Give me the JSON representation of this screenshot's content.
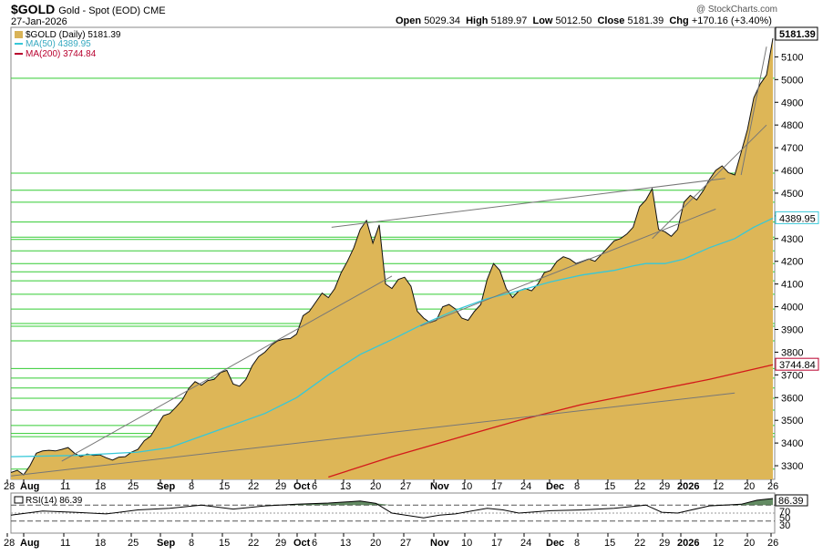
{
  "header": {
    "ticker": "$GOLD",
    "description": "Gold - Spot (EOD) CME",
    "date": "27-Jan-2026",
    "open_label": "Open",
    "open": "5029.34",
    "high_label": "High",
    "high": "5189.97",
    "low_label": "Low",
    "low": "5012.50",
    "close_label": "Close",
    "close": "5181.39",
    "chg_label": "Chg",
    "chg": "+170.16 (+3.40%)",
    "copyright": "@ StockCharts.com"
  },
  "legend": [
    {
      "label": "$GOLD (Daily) 5181.39",
      "color": "#d9b357"
    },
    {
      "label": "MA(50) 4389.95",
      "color": "#36c8d8"
    },
    {
      "label": "MA(200) 3744.84",
      "color": "#b8002e"
    }
  ],
  "price_badges": {
    "last": "5181.39",
    "ma50": "4389.95",
    "ma200": "3744.84"
  },
  "rsi": {
    "label": "RSI(14) 86.39",
    "badge": "86.39",
    "levels": [
      "70",
      "50",
      "30"
    ],
    "value": 86.39
  },
  "colors": {
    "area": "#ddb657",
    "ma50": "#36c8d8",
    "ma200": "#d31a1a",
    "hline": "#33cc33",
    "trend": "#777777"
  },
  "chart_data": {
    "type": "area",
    "ylim": [
      3240,
      5230
    ],
    "y_ticks": [
      3300,
      3400,
      3500,
      3600,
      3700,
      3800,
      3900,
      4000,
      4100,
      4200,
      4300,
      4400,
      4500,
      4600,
      4700,
      4800,
      4900,
      5000,
      5100
    ],
    "x_ticks": [
      "28",
      "Aug",
      "11",
      "18",
      "25",
      "Sep",
      "8",
      "15",
      "22",
      "29",
      "Oct",
      "6",
      "13",
      "20",
      "27",
      "Nov",
      "10",
      "17",
      "24",
      "Dec",
      "8",
      "15",
      "22",
      "29",
      "2026",
      "12",
      "20",
      "26"
    ],
    "bold_x_ticks": [
      "Aug",
      "Sep",
      "Oct",
      "Nov",
      "Dec",
      "2026"
    ],
    "price": [
      [
        0,
        3270
      ],
      [
        2,
        3280
      ],
      [
        4,
        3260
      ],
      [
        6,
        3300
      ],
      [
        8,
        3355
      ],
      [
        10,
        3365
      ],
      [
        12,
        3368
      ],
      [
        14,
        3365
      ],
      [
        16,
        3372
      ],
      [
        18,
        3380
      ],
      [
        20,
        3355
      ],
      [
        22,
        3340
      ],
      [
        24,
        3352
      ],
      [
        26,
        3345
      ],
      [
        28,
        3348
      ],
      [
        30,
        3335
      ],
      [
        32,
        3325
      ],
      [
        34,
        3338
      ],
      [
        36,
        3340
      ],
      [
        38,
        3360
      ],
      [
        40,
        3372
      ],
      [
        42,
        3410
      ],
      [
        44,
        3430
      ],
      [
        46,
        3475
      ],
      [
        48,
        3520
      ],
      [
        50,
        3530
      ],
      [
        52,
        3558
      ],
      [
        54,
        3590
      ],
      [
        56,
        3640
      ],
      [
        58,
        3670
      ],
      [
        60,
        3655
      ],
      [
        62,
        3675
      ],
      [
        64,
        3680
      ],
      [
        66,
        3710
      ],
      [
        68,
        3720
      ],
      [
        70,
        3660
      ],
      [
        72,
        3650
      ],
      [
        74,
        3680
      ],
      [
        76,
        3740
      ],
      [
        78,
        3780
      ],
      [
        80,
        3800
      ],
      [
        82,
        3830
      ],
      [
        84,
        3850
      ],
      [
        86,
        3858
      ],
      [
        88,
        3860
      ],
      [
        90,
        3880
      ],
      [
        92,
        3960
      ],
      [
        94,
        3980
      ],
      [
        96,
        4020
      ],
      [
        98,
        4060
      ],
      [
        100,
        4040
      ],
      [
        102,
        4080
      ],
      [
        104,
        4150
      ],
      [
        106,
        4200
      ],
      [
        108,
        4260
      ],
      [
        110,
        4340
      ],
      [
        112,
        4380
      ],
      [
        114,
        4280
      ],
      [
        116,
        4360
      ],
      [
        118,
        4100
      ],
      [
        120,
        4080
      ],
      [
        122,
        4120
      ],
      [
        124,
        4130
      ],
      [
        126,
        4090
      ],
      [
        128,
        3980
      ],
      [
        130,
        3950
      ],
      [
        132,
        3930
      ],
      [
        134,
        3940
      ],
      [
        136,
        4000
      ],
      [
        138,
        4010
      ],
      [
        140,
        3990
      ],
      [
        142,
        3950
      ],
      [
        144,
        3940
      ],
      [
        146,
        3980
      ],
      [
        148,
        4010
      ],
      [
        150,
        4120
      ],
      [
        152,
        4190
      ],
      [
        154,
        4160
      ],
      [
        156,
        4080
      ],
      [
        158,
        4040
      ],
      [
        160,
        4070
      ],
      [
        162,
        4080
      ],
      [
        164,
        4070
      ],
      [
        166,
        4100
      ],
      [
        168,
        4150
      ],
      [
        170,
        4160
      ],
      [
        172,
        4200
      ],
      [
        174,
        4220
      ],
      [
        176,
        4210
      ],
      [
        178,
        4190
      ],
      [
        180,
        4200
      ],
      [
        182,
        4210
      ],
      [
        184,
        4200
      ],
      [
        186,
        4230
      ],
      [
        188,
        4260
      ],
      [
        190,
        4290
      ],
      [
        192,
        4300
      ],
      [
        194,
        4320
      ],
      [
        196,
        4350
      ],
      [
        198,
        4440
      ],
      [
        200,
        4470
      ],
      [
        202,
        4520
      ],
      [
        204,
        4340
      ],
      [
        206,
        4330
      ],
      [
        208,
        4310
      ],
      [
        210,
        4340
      ],
      [
        212,
        4460
      ],
      [
        214,
        4490
      ],
      [
        216,
        4470
      ],
      [
        218,
        4510
      ],
      [
        220,
        4560
      ],
      [
        222,
        4600
      ],
      [
        224,
        4620
      ],
      [
        226,
        4590
      ],
      [
        228,
        4580
      ],
      [
        230,
        4680
      ],
      [
        232,
        4780
      ],
      [
        234,
        4920
      ],
      [
        236,
        4980
      ],
      [
        238,
        5020
      ],
      [
        240,
        5181.39
      ]
    ],
    "ma50": [
      [
        0,
        3340
      ],
      [
        20,
        3345
      ],
      [
        40,
        3360
      ],
      [
        50,
        3380
      ],
      [
        60,
        3430
      ],
      [
        70,
        3480
      ],
      [
        80,
        3530
      ],
      [
        90,
        3600
      ],
      [
        100,
        3700
      ],
      [
        110,
        3790
      ],
      [
        120,
        3855
      ],
      [
        130,
        3925
      ],
      [
        140,
        3985
      ],
      [
        150,
        4035
      ],
      [
        160,
        4070
      ],
      [
        170,
        4110
      ],
      [
        180,
        4140
      ],
      [
        190,
        4160
      ],
      [
        196,
        4180
      ],
      [
        200,
        4190
      ],
      [
        206,
        4190
      ],
      [
        212,
        4210
      ],
      [
        220,
        4260
      ],
      [
        228,
        4300
      ],
      [
        234,
        4350
      ],
      [
        240,
        4389.95
      ]
    ],
    "ma200": [
      [
        100,
        3250
      ],
      [
        120,
        3340
      ],
      [
        140,
        3420
      ],
      [
        160,
        3500
      ],
      [
        180,
        3570
      ],
      [
        200,
        3625
      ],
      [
        220,
        3680
      ],
      [
        240,
        3744.84
      ]
    ],
    "trendlines": [
      [
        [
          0,
          3255
        ],
        [
          228,
          3620
        ]
      ],
      [
        [
          16,
          3320
        ],
        [
          120,
          4135
        ]
      ],
      [
        [
          101,
          4350
        ],
        [
          225,
          4565
        ]
      ],
      [
        [
          129,
          3915
        ],
        [
          222,
          4430
        ]
      ],
      [
        [
          202,
          4300
        ],
        [
          238,
          4800
        ]
      ],
      [
        [
          230,
          4580
        ],
        [
          238,
          5145
        ]
      ]
    ],
    "horizontal_levels": [
      3285,
      3428,
      3442,
      3477,
      3545,
      3597,
      3642,
      3686,
      3728,
      3850,
      3914,
      3926,
      3990,
      4055,
      4114,
      4154,
      4190,
      4246,
      4296,
      4306,
      4373,
      4460,
      4513,
      4588,
      5006
    ],
    "rsi_series": [
      [
        0,
        45
      ],
      [
        10,
        55
      ],
      [
        20,
        52
      ],
      [
        30,
        48
      ],
      [
        40,
        58
      ],
      [
        50,
        62
      ],
      [
        60,
        70
      ],
      [
        70,
        60
      ],
      [
        80,
        68
      ],
      [
        90,
        72
      ],
      [
        100,
        75
      ],
      [
        110,
        80
      ],
      [
        115,
        74
      ],
      [
        120,
        50
      ],
      [
        125,
        44
      ],
      [
        130,
        38
      ],
      [
        135,
        45
      ],
      [
        140,
        48
      ],
      [
        150,
        62
      ],
      [
        155,
        58
      ],
      [
        160,
        50
      ],
      [
        170,
        56
      ],
      [
        180,
        58
      ],
      [
        190,
        62
      ],
      [
        200,
        70
      ],
      [
        205,
        52
      ],
      [
        210,
        50
      ],
      [
        220,
        68
      ],
      [
        230,
        72
      ],
      [
        235,
        82
      ],
      [
        240,
        86.39
      ]
    ]
  }
}
